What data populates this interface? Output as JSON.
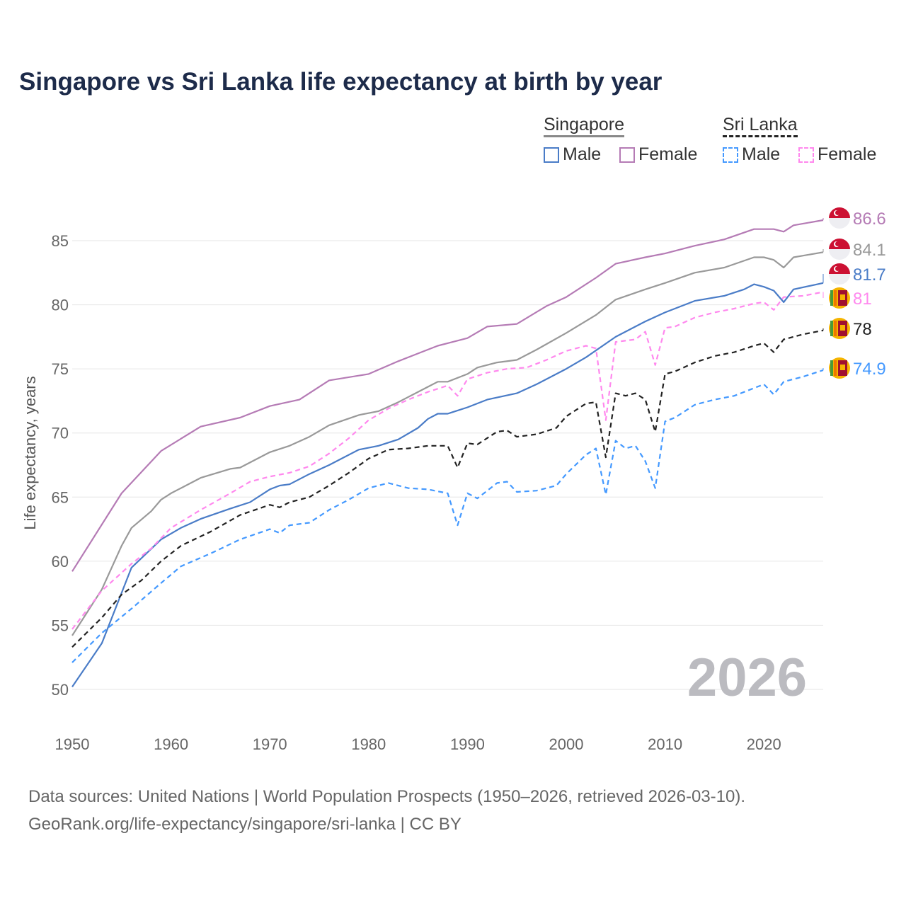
{
  "title": "Singapore vs Sri Lanka life expectancy at birth by year",
  "legend": {
    "groups": [
      {
        "name": "Singapore",
        "line": "#888888",
        "dash": false,
        "items": [
          {
            "label": "Male",
            "color": "#4a7cc7"
          },
          {
            "label": "Female",
            "color": "#b57bb5"
          }
        ]
      },
      {
        "name": "Sri Lanka",
        "line": "#222222",
        "dash": true,
        "items": [
          {
            "label": "Male",
            "color": "#4499ff"
          },
          {
            "label": "Female",
            "color": "#ff88ee"
          }
        ]
      }
    ]
  },
  "watermark_year": "2026",
  "footer": {
    "line1": "Data sources: United Nations | World Population Prospects (1950–2026, retrieved 2026-03-10).",
    "line2": "GeoRank.org/life-expectancy/singapore/sri-lanka | CC BY"
  },
  "chart_data": {
    "type": "line",
    "title": "Singapore vs Sri Lanka life expectancy at birth by year",
    "xlabel": "",
    "ylabel": "Life expectancy, years",
    "xlim": [
      1950,
      2026
    ],
    "ylim": [
      50,
      85
    ],
    "xticks": [
      1950,
      1960,
      1970,
      1980,
      1990,
      2000,
      2010,
      2020
    ],
    "yticks": [
      50,
      55,
      60,
      65,
      70,
      75,
      80,
      85
    ],
    "grid": true,
    "series": [
      {
        "name": "Singapore Female",
        "country": "singapore",
        "color": "#b57bb5",
        "dash": false,
        "end_label": "86.6",
        "x": [
          1950,
          1955,
          1959,
          1963,
          1967,
          1970,
          1973,
          1976,
          1980,
          1983,
          1985,
          1987,
          1990,
          1992,
          1995,
          1998,
          2000,
          2003,
          2005,
          2008,
          2010,
          2013,
          2016,
          2019,
          2021,
          2022,
          2023,
          2026
        ],
        "y": [
          59.2,
          65.3,
          68.6,
          70.5,
          71.2,
          72.1,
          72.6,
          74.1,
          74.6,
          75.6,
          76.2,
          76.8,
          77.4,
          78.3,
          78.5,
          79.9,
          80.6,
          82.1,
          83.2,
          83.7,
          84.0,
          84.6,
          85.1,
          85.9,
          85.9,
          85.7,
          86.2,
          86.6
        ]
      },
      {
        "name": "Singapore",
        "country": "singapore",
        "color": "#999999",
        "dash": false,
        "end_label": "84.1",
        "x": [
          1950,
          1953,
          1955,
          1956,
          1958,
          1959,
          1960,
          1963,
          1966,
          1967,
          1970,
          1972,
          1974,
          1976,
          1979,
          1981,
          1983,
          1986,
          1987,
          1988,
          1990,
          1991,
          1993,
          1995,
          1997,
          2000,
          2003,
          2005,
          2008,
          2010,
          2013,
          2016,
          2019,
          2020,
          2021,
          2022,
          2023,
          2026
        ],
        "y": [
          54.2,
          57.8,
          61.2,
          62.6,
          63.9,
          64.8,
          65.3,
          66.5,
          67.2,
          67.3,
          68.5,
          69.0,
          69.7,
          70.6,
          71.4,
          71.7,
          72.4,
          73.6,
          74.0,
          74.0,
          74.6,
          75.1,
          75.5,
          75.7,
          76.5,
          77.8,
          79.2,
          80.4,
          81.2,
          81.7,
          82.5,
          82.9,
          83.7,
          83.7,
          83.5,
          82.9,
          83.7,
          84.1
        ]
      },
      {
        "name": "Singapore Male",
        "country": "singapore",
        "color": "#4a7cc7",
        "dash": false,
        "end_label": "81.7",
        "x": [
          1950,
          1953,
          1956,
          1959,
          1961,
          1963,
          1966,
          1968,
          1970,
          1971,
          1972,
          1974,
          1976,
          1979,
          1981,
          1983,
          1985,
          1986,
          1987,
          1988,
          1990,
          1992,
          1995,
          1997,
          2000,
          2002,
          2005,
          2008,
          2010,
          2013,
          2016,
          2018,
          2019,
          2020,
          2021,
          2022,
          2023,
          2026
        ],
        "y": [
          50.2,
          53.6,
          59.5,
          61.7,
          62.6,
          63.3,
          64.1,
          64.6,
          65.6,
          65.9,
          66.0,
          66.8,
          67.5,
          68.7,
          69.0,
          69.5,
          70.4,
          71.1,
          71.5,
          71.5,
          72.0,
          72.6,
          73.1,
          73.8,
          75.0,
          75.9,
          77.5,
          78.7,
          79.4,
          80.3,
          80.7,
          81.2,
          81.6,
          81.4,
          81.1,
          80.2,
          81.2,
          81.7
        ]
      },
      {
        "name": "Sri Lanka Female",
        "country": "sri-lanka",
        "color": "#ff88ee",
        "dash": true,
        "end_label": "81",
        "x": [
          1950,
          1953,
          1956,
          1958,
          1960,
          1963,
          1966,
          1968,
          1970,
          1972,
          1974,
          1976,
          1978,
          1980,
          1982,
          1984,
          1986,
          1988,
          1989,
          1990,
          1992,
          1994,
          1996,
          1998,
          2000,
          2002,
          2003,
          2004,
          2005,
          2007,
          2008,
          2009,
          2010,
          2011,
          2013,
          2015,
          2017,
          2019,
          2020,
          2021,
          2022,
          2024,
          2026
        ],
        "y": [
          54.7,
          57.7,
          59.8,
          61.0,
          62.6,
          64.0,
          65.3,
          66.2,
          66.6,
          66.9,
          67.4,
          68.4,
          69.6,
          71.0,
          71.9,
          72.6,
          73.2,
          73.7,
          72.9,
          74.2,
          74.7,
          75.0,
          75.1,
          75.7,
          76.4,
          76.8,
          76.6,
          71.0,
          77.1,
          77.3,
          77.9,
          75.3,
          78.2,
          78.3,
          79.0,
          79.4,
          79.7,
          80.1,
          80.2,
          79.6,
          80.6,
          80.7,
          81.0
        ]
      },
      {
        "name": "Sri Lanka",
        "country": "sri-lanka",
        "color": "#222222",
        "dash": true,
        "end_label": "78",
        "x": [
          1950,
          1953,
          1955,
          1957,
          1959,
          1961,
          1964,
          1967,
          1970,
          1971,
          1972,
          1974,
          1976,
          1978,
          1980,
          1982,
          1984,
          1986,
          1988,
          1989,
          1990,
          1991,
          1993,
          1994,
          1995,
          1997,
          1999,
          2000,
          2002,
          2003,
          2004,
          2005,
          2006,
          2007,
          2008,
          2009,
          2010,
          2011,
          2013,
          2015,
          2017,
          2019,
          2020,
          2021,
          2022,
          2024,
          2026
        ],
        "y": [
          53.3,
          55.6,
          57.4,
          58.5,
          60.0,
          61.2,
          62.3,
          63.6,
          64.4,
          64.2,
          64.6,
          65.0,
          65.9,
          66.9,
          68.0,
          68.7,
          68.8,
          69.0,
          69.0,
          67.3,
          69.2,
          69.1,
          70.1,
          70.2,
          69.7,
          69.9,
          70.4,
          71.3,
          72.3,
          72.4,
          68.1,
          73.1,
          72.9,
          73.1,
          72.6,
          70.1,
          74.6,
          74.8,
          75.5,
          76.0,
          76.3,
          76.8,
          77.0,
          76.3,
          77.3,
          77.7,
          78.0
        ]
      },
      {
        "name": "Sri Lanka Male",
        "country": "sri-lanka",
        "color": "#4499ff",
        "dash": true,
        "end_label": "74.9",
        "x": [
          1950,
          1953,
          1956,
          1959,
          1961,
          1964,
          1967,
          1970,
          1971,
          1972,
          1974,
          1976,
          1978,
          1980,
          1982,
          1984,
          1986,
          1988,
          1989,
          1990,
          1991,
          1993,
          1994,
          1995,
          1997,
          1999,
          2000,
          2002,
          2003,
          2004,
          2005,
          2006,
          2007,
          2008,
          2009,
          2010,
          2011,
          2013,
          2015,
          2017,
          2019,
          2020,
          2021,
          2022,
          2024,
          2026
        ],
        "y": [
          52.1,
          54.4,
          56.3,
          58.3,
          59.6,
          60.6,
          61.7,
          62.5,
          62.2,
          62.8,
          63.0,
          64.0,
          64.8,
          65.7,
          66.1,
          65.7,
          65.6,
          65.3,
          62.8,
          65.3,
          64.9,
          66.1,
          66.2,
          65.4,
          65.5,
          65.9,
          66.8,
          68.3,
          68.8,
          65.2,
          69.4,
          68.8,
          69.0,
          67.8,
          65.7,
          70.9,
          71.2,
          72.2,
          72.6,
          72.9,
          73.5,
          73.8,
          73.0,
          74.0,
          74.4,
          74.9
        ]
      }
    ]
  }
}
